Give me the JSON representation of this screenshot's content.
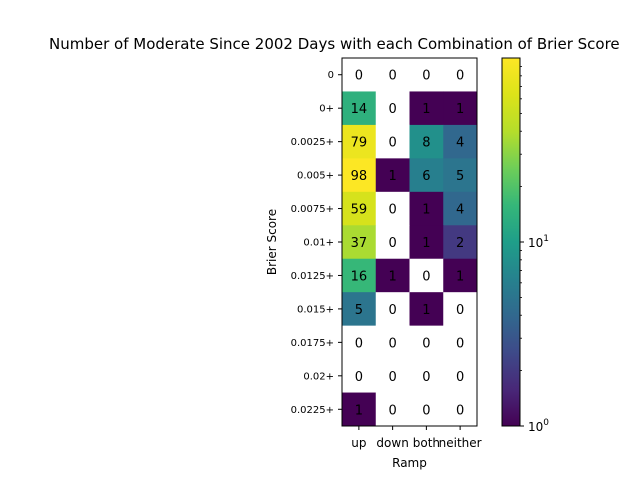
{
  "chart_data": {
    "type": "heatmap",
    "title": "Number of Moderate Since 2002 Days with each Combination of Brier Score",
    "xlabel": "Ramp",
    "ylabel": "Brier Score",
    "x_categories": [
      "up",
      "down",
      "both",
      "neither"
    ],
    "y_categories": [
      "0",
      "0+",
      "0.0025+",
      "0.005+",
      "0.0075+",
      "0.01+",
      "0.0125+",
      "0.015+",
      "0.0175+",
      "0.02+",
      "0.0225+"
    ],
    "values": [
      [
        0,
        0,
        0,
        0
      ],
      [
        14,
        0,
        1,
        1
      ],
      [
        79,
        0,
        8,
        4
      ],
      [
        98,
        1,
        6,
        5
      ],
      [
        59,
        0,
        1,
        4
      ],
      [
        37,
        0,
        1,
        2
      ],
      [
        16,
        1,
        0,
        1
      ],
      [
        5,
        0,
        1,
        0
      ],
      [
        0,
        0,
        0,
        0
      ],
      [
        0,
        0,
        0,
        0
      ],
      [
        1,
        0,
        0,
        0
      ]
    ],
    "colorbar": {
      "scale": "log",
      "colormap": "viridis",
      "range": [
        1,
        100
      ],
      "tick_labels": [
        "10^0",
        "10^1"
      ]
    },
    "zero_cells_color": "#ffffff",
    "grid": false
  }
}
